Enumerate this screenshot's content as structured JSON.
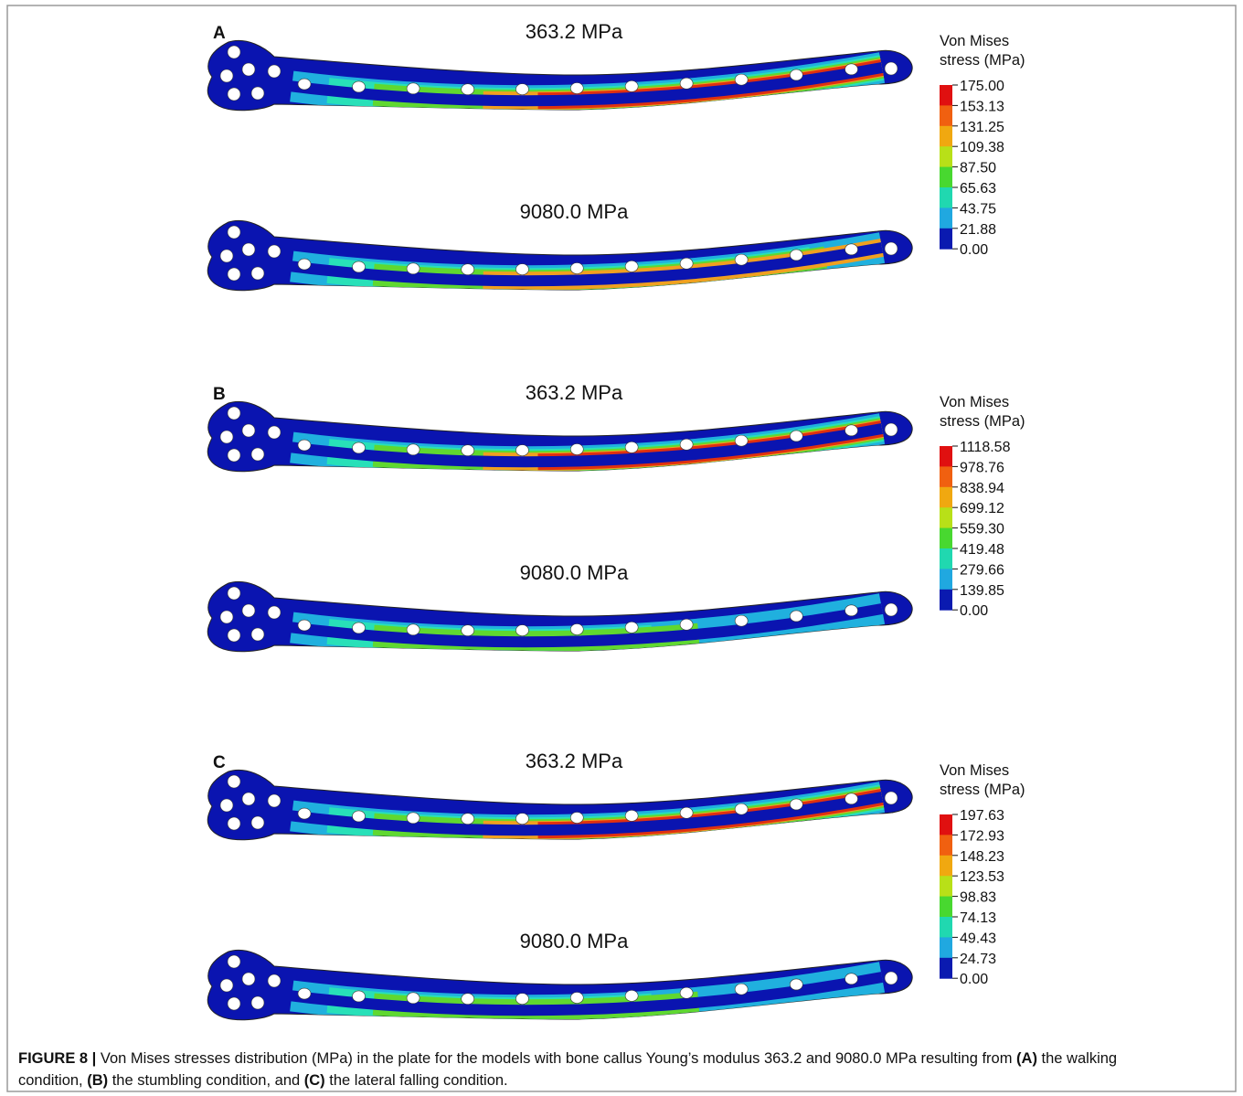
{
  "panels": [
    {
      "label": "A",
      "plates": [
        {
          "title": "363.2 MPa"
        },
        {
          "title": "9080.0 MPa"
        }
      ],
      "legend": {
        "title": [
          "Von Mises",
          "stress (MPa)"
        ],
        "ticks": [
          "175.00",
          "153.13",
          "131.25",
          "109.38",
          "87.50",
          "65.63",
          "43.75",
          "21.88",
          "0.00"
        ]
      }
    },
    {
      "label": "B",
      "plates": [
        {
          "title": "363.2 MPa"
        },
        {
          "title": "9080.0 MPa"
        }
      ],
      "legend": {
        "title": [
          "Von Mises",
          "stress (MPa)"
        ],
        "ticks": [
          "1118.58",
          "978.76",
          "838.94",
          "699.12",
          "559.30",
          "419.48",
          "279.66",
          "139.85",
          "0.00"
        ]
      }
    },
    {
      "label": "C",
      "plates": [
        {
          "title": "363.2 MPa"
        },
        {
          "title": "9080.0 MPa"
        }
      ],
      "legend": {
        "title": [
          "Von Mises",
          "stress (MPa)"
        ],
        "ticks": [
          "197.63",
          "172.93",
          "148.23",
          "123.53",
          "98.83",
          "74.13",
          "49.43",
          "24.73",
          "0.00"
        ]
      }
    }
  ],
  "caption": [
    {
      "text": "FIGURE 8 |",
      "bold": true
    },
    {
      "text": " Von Mises stresses distribution (MPa) in the plate for the models with bone callus Young’s modulus 363.2 and 9080.0 MPa resulting from ",
      "bold": false
    },
    {
      "text": "(A)",
      "bold": true
    },
    {
      "text": " the walking",
      "bold": false
    },
    {
      "text": "condition, ",
      "bold": false,
      "break": true
    },
    {
      "text": "(B)",
      "bold": true
    },
    {
      "text": " the stumbling condition, and ",
      "bold": false
    },
    {
      "text": "(C)",
      "bold": true
    },
    {
      "text": " the lateral falling condition.",
      "bold": false
    }
  ]
}
